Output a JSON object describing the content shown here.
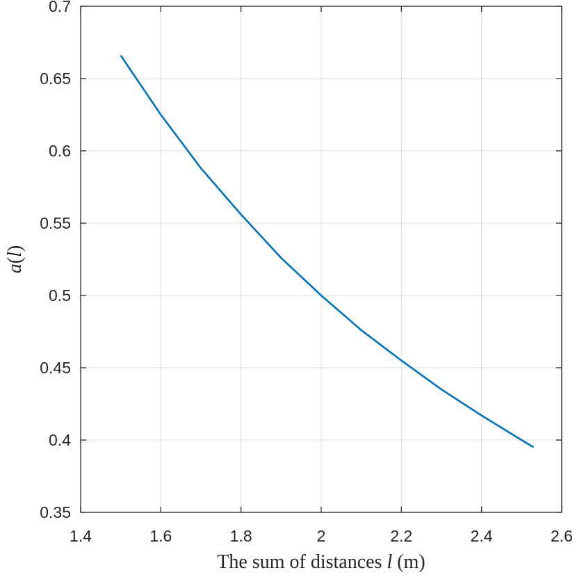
{
  "chart_data": {
    "type": "line",
    "title": "",
    "xlabel": {
      "prefix": "The sum of distances ",
      "symbol": "l",
      "suffix": " (m)"
    },
    "ylabel": {
      "func": "a",
      "open": "(",
      "arg": "l",
      "close": ")"
    },
    "xlim": [
      1.4,
      2.6
    ],
    "ylim": [
      0.35,
      0.7
    ],
    "xticks": [
      "1.4",
      "1.6",
      "1.8",
      "2",
      "2.2",
      "2.4",
      "2.6"
    ],
    "yticks": [
      "0.35",
      "0.4",
      "0.45",
      "0.5",
      "0.55",
      "0.6",
      "0.65",
      "0.7"
    ],
    "grid": true,
    "series": [
      {
        "color": "#0072BD",
        "x": [
          1.5,
          1.6,
          1.7,
          1.8,
          1.9,
          2.0,
          2.1,
          2.2,
          2.3,
          2.4,
          2.5,
          2.53
        ],
        "y": [
          0.666,
          0.625,
          0.588,
          0.556,
          0.526,
          0.5,
          0.476,
          0.455,
          0.435,
          0.417,
          0.4,
          0.395
        ]
      }
    ]
  }
}
